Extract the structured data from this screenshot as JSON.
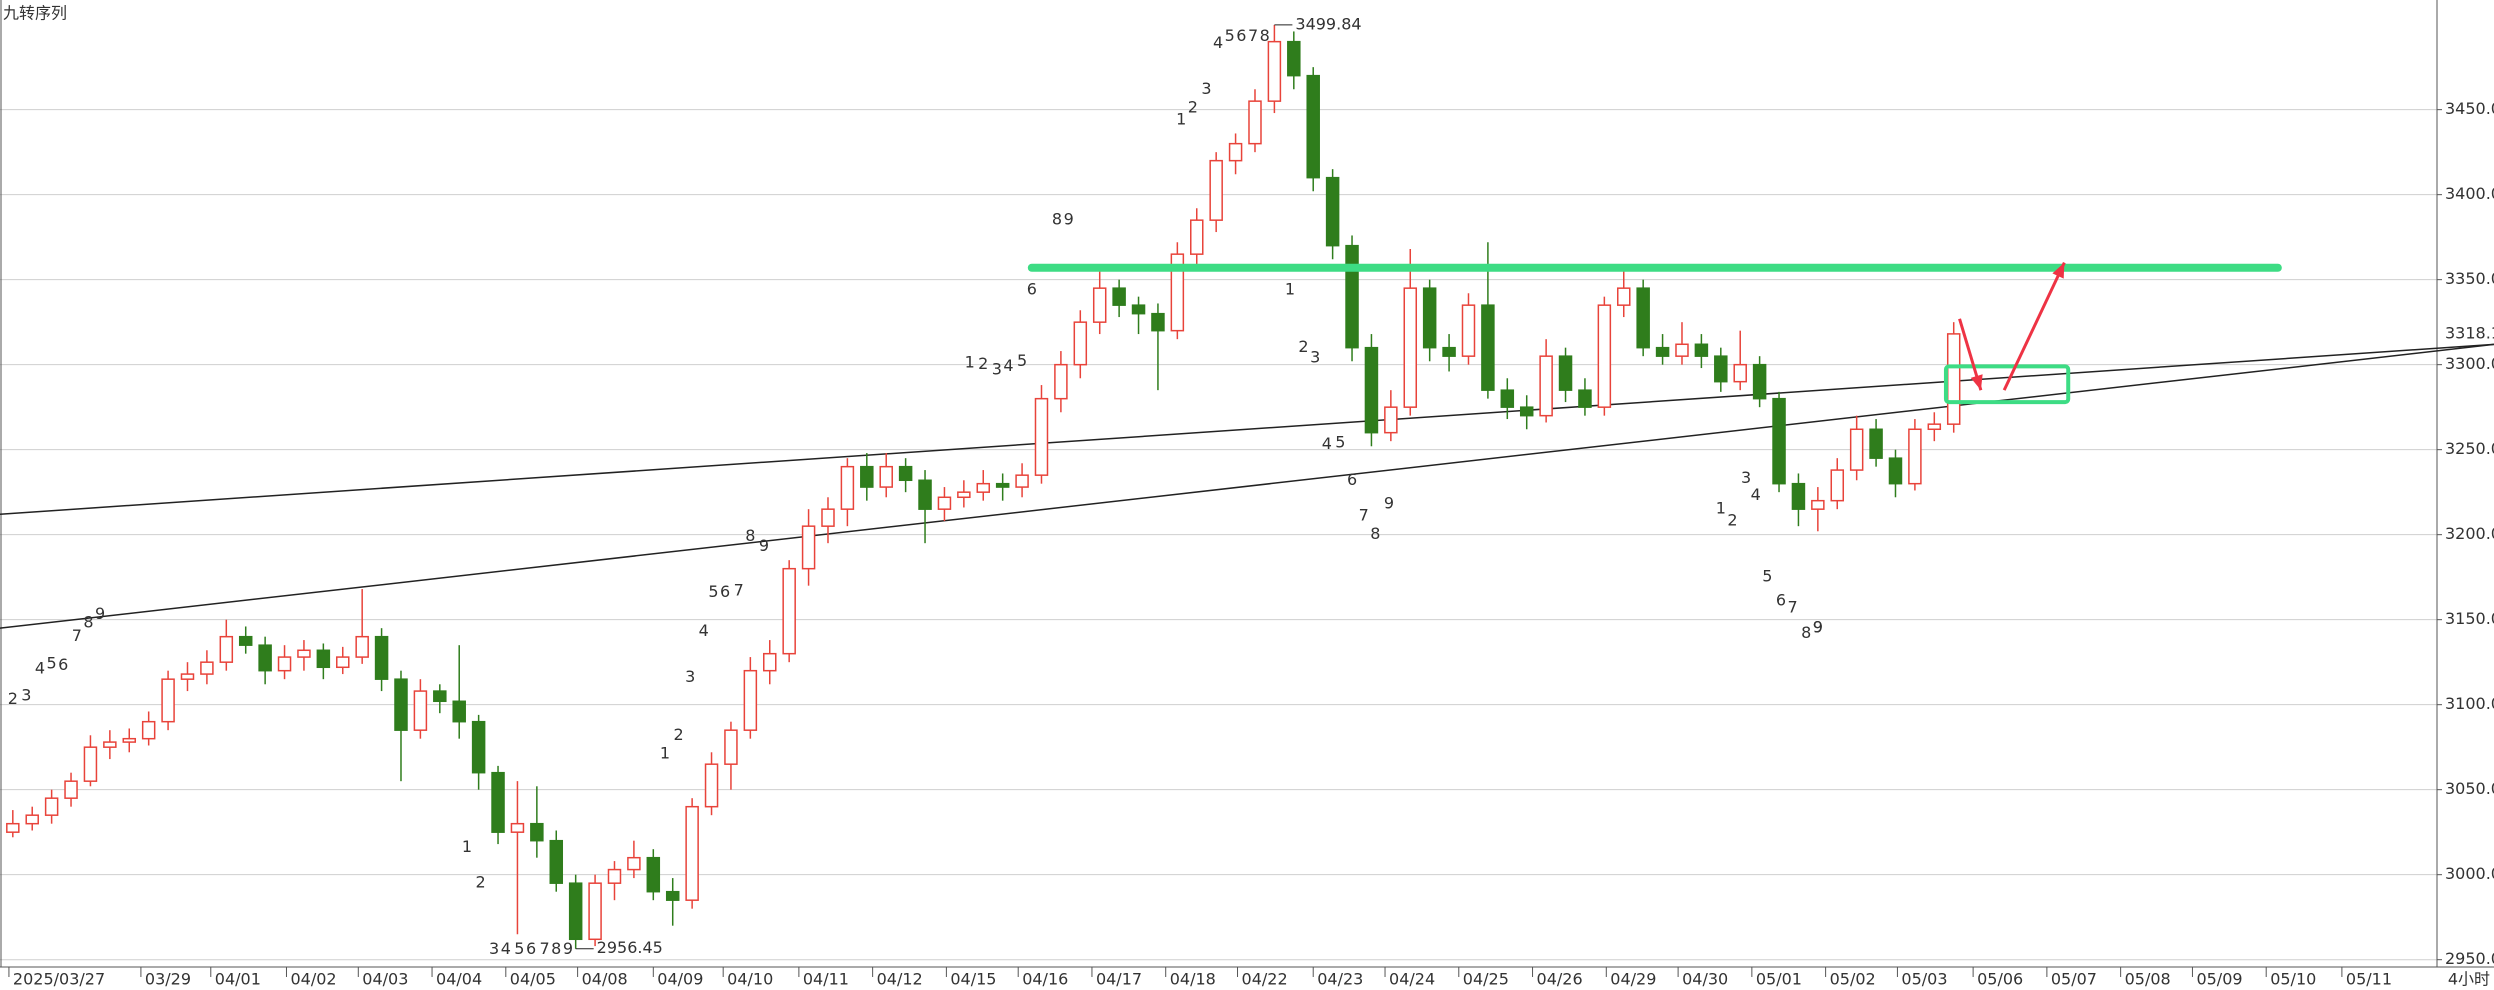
{
  "chart_data": {
    "type": "candlestick",
    "title": "九转序列",
    "timeframe": "4小时",
    "colors": {
      "up": "#e8433a",
      "down": "#2f7d1c"
    },
    "values": [
      [
        3025,
        3038,
        3022,
        3030
      ],
      [
        3030,
        3040,
        3026,
        3035
      ],
      [
        3035,
        3050,
        3030,
        3045
      ],
      [
        3045,
        3060,
        3040,
        3055
      ],
      [
        3055,
        3082,
        3052,
        3075
      ],
      [
        3075,
        3085,
        3068,
        3078
      ],
      [
        3078,
        3086,
        3072,
        3080
      ],
      [
        3080,
        3096,
        3076,
        3090
      ],
      [
        3090,
        3120,
        3085,
        3115
      ],
      [
        3115,
        3125,
        3108,
        3118
      ],
      [
        3118,
        3132,
        3112,
        3125
      ],
      [
        3125,
        3150,
        3120,
        3140
      ],
      [
        3140,
        3146,
        3130,
        3135
      ],
      [
        3135,
        3140,
        3112,
        3120
      ],
      [
        3120,
        3135,
        3115,
        3128
      ],
      [
        3128,
        3138,
        3120,
        3132
      ],
      [
        3132,
        3136,
        3115,
        3122
      ],
      [
        3122,
        3134,
        3118,
        3128
      ],
      [
        3128,
        3168,
        3124,
        3140
      ],
      [
        3140,
        3145,
        3108,
        3115
      ],
      [
        3115,
        3120,
        3055,
        3085
      ],
      [
        3085,
        3115,
        3080,
        3108
      ],
      [
        3108,
        3112,
        3095,
        3102
      ],
      [
        3102,
        3135,
        3080,
        3090
      ],
      [
        3090,
        3094,
        3050,
        3060
      ],
      [
        3060,
        3064,
        3018,
        3025
      ],
      [
        3025,
        3055,
        2965,
        3030
      ],
      [
        3030,
        3052,
        3010,
        3020
      ],
      [
        3020,
        3026,
        2990,
        2995
      ],
      [
        2995,
        3000,
        2956.45,
        2962
      ],
      [
        2962,
        3000,
        2958,
        2995
      ],
      [
        2995,
        3008,
        2985,
        3003
      ],
      [
        3003,
        3020,
        2998,
        3010
      ],
      [
        3010,
        3015,
        2985,
        2990
      ],
      [
        2990,
        2998,
        2970,
        2985
      ],
      [
        2985,
        3045,
        2980,
        3040
      ],
      [
        3040,
        3072,
        3035,
        3065
      ],
      [
        3065,
        3090,
        3050,
        3085
      ],
      [
        3085,
        3128,
        3080,
        3120
      ],
      [
        3120,
        3138,
        3112,
        3130
      ],
      [
        3130,
        3185,
        3125,
        3180
      ],
      [
        3180,
        3215,
        3170,
        3205
      ],
      [
        3205,
        3222,
        3195,
        3215
      ],
      [
        3215,
        3245,
        3205,
        3240
      ],
      [
        3240,
        3248,
        3220,
        3228
      ],
      [
        3228,
        3248,
        3222,
        3240
      ],
      [
        3240,
        3245,
        3225,
        3232
      ],
      [
        3232,
        3238,
        3195,
        3215
      ],
      [
        3215,
        3228,
        3208,
        3222
      ],
      [
        3222,
        3232,
        3216,
        3225
      ],
      [
        3225,
        3238,
        3220,
        3230
      ],
      [
        3230,
        3236,
        3220,
        3228
      ],
      [
        3228,
        3242,
        3222,
        3235
      ],
      [
        3235,
        3288,
        3230,
        3280
      ],
      [
        3280,
        3308,
        3272,
        3300
      ],
      [
        3300,
        3332,
        3292,
        3325
      ],
      [
        3325,
        3355,
        3318,
        3345
      ],
      [
        3345,
        3350,
        3328,
        3335
      ],
      [
        3335,
        3340,
        3318,
        3330
      ],
      [
        3330,
        3336,
        3285,
        3320
      ],
      [
        3320,
        3372,
        3315,
        3365
      ],
      [
        3365,
        3392,
        3358,
        3385
      ],
      [
        3385,
        3425,
        3378,
        3420
      ],
      [
        3420,
        3436,
        3412,
        3430
      ],
      [
        3430,
        3462,
        3425,
        3455
      ],
      [
        3455,
        3499.84,
        3448,
        3490
      ],
      [
        3490,
        3496,
        3462,
        3470
      ],
      [
        3470,
        3475,
        3402,
        3410
      ],
      [
        3410,
        3415,
        3362,
        3370
      ],
      [
        3370,
        3376,
        3302,
        3310
      ],
      [
        3310,
        3318,
        3252,
        3260
      ],
      [
        3260,
        3285,
        3255,
        3275
      ],
      [
        3275,
        3368,
        3270,
        3345
      ],
      [
        3345,
        3350,
        3302,
        3310
      ],
      [
        3310,
        3318,
        3296,
        3305
      ],
      [
        3305,
        3342,
        3300,
        3335
      ],
      [
        3335,
        3372,
        3280,
        3285
      ],
      [
        3285,
        3292,
        3268,
        3275
      ],
      [
        3275,
        3282,
        3262,
        3270
      ],
      [
        3270,
        3315,
        3266,
        3305
      ],
      [
        3305,
        3310,
        3278,
        3285
      ],
      [
        3285,
        3292,
        3270,
        3275
      ],
      [
        3275,
        3340,
        3270,
        3335
      ],
      [
        3335,
        3355,
        3328,
        3345
      ],
      [
        3345,
        3350,
        3305,
        3310
      ],
      [
        3310,
        3318,
        3300,
        3305
      ],
      [
        3305,
        3325,
        3300,
        3312
      ],
      [
        3312,
        3318,
        3298,
        3305
      ],
      [
        3305,
        3310,
        3284,
        3290
      ],
      [
        3290,
        3320,
        3285,
        3300
      ],
      [
        3300,
        3305,
        3275,
        3280
      ],
      [
        3280,
        3284,
        3225,
        3230
      ],
      [
        3230,
        3236,
        3205,
        3215
      ],
      [
        3215,
        3228,
        3202,
        3220
      ],
      [
        3220,
        3245,
        3215,
        3238
      ],
      [
        3238,
        3270,
        3232,
        3262
      ],
      [
        3262,
        3268,
        3240,
        3245
      ],
      [
        3245,
        3250,
        3222,
        3230
      ],
      [
        3230,
        3268,
        3226,
        3262
      ],
      [
        3262,
        3272,
        3255,
        3265
      ],
      [
        3265,
        3325,
        3260,
        3318.1
      ]
    ],
    "xlim": [
      -0.66,
      124.9
    ],
    "ylim": [
      2945.7,
      3514.5
    ],
    "yticks": [
      {
        "value": 2950,
        "label": "2950.00"
      },
      {
        "value": 3000,
        "label": "3000.00"
      },
      {
        "value": 3050,
        "label": "3050.00"
      },
      {
        "value": 3100,
        "label": "3100.00"
      },
      {
        "value": 3150,
        "label": "3150.00"
      },
      {
        "value": 3200,
        "label": "3200.00"
      },
      {
        "value": 3250,
        "label": "3250.00"
      },
      {
        "value": 3300,
        "label": "3300.00"
      },
      {
        "value": 3350,
        "label": "3350.00"
      },
      {
        "value": 3400,
        "label": "3400.00"
      },
      {
        "value": 3450,
        "label": "3450.00"
      }
    ],
    "xticks": [
      {
        "value": -0.2,
        "label": "2025/03/27"
      },
      {
        "value": 6.6,
        "label": "03/29"
      },
      {
        "value": 10.2,
        "label": "04/01"
      },
      {
        "value": 14.1,
        "label": "04/02"
      },
      {
        "value": 17.8,
        "label": "04/03"
      },
      {
        "value": 21.6,
        "label": "04/04"
      },
      {
        "value": 25.4,
        "label": "04/05"
      },
      {
        "value": 29.1,
        "label": "04/08"
      },
      {
        "value": 33.0,
        "label": "04/09"
      },
      {
        "value": 36.6,
        "label": "04/10"
      },
      {
        "value": 40.5,
        "label": "04/11"
      },
      {
        "value": 44.3,
        "label": "04/12"
      },
      {
        "value": 48.1,
        "label": "04/15"
      },
      {
        "value": 51.8,
        "label": "04/16"
      },
      {
        "value": 55.6,
        "label": "04/17"
      },
      {
        "value": 59.4,
        "label": "04/18"
      },
      {
        "value": 63.1,
        "label": "04/22"
      },
      {
        "value": 67.0,
        "label": "04/23"
      },
      {
        "value": 70.7,
        "label": "04/24"
      },
      {
        "value": 74.5,
        "label": "04/25"
      },
      {
        "value": 78.3,
        "label": "04/26"
      },
      {
        "value": 82.1,
        "label": "04/29"
      },
      {
        "value": 85.8,
        "label": "04/30"
      },
      {
        "value": 89.6,
        "label": "05/01"
      },
      {
        "value": 93.4,
        "label": "05/02"
      },
      {
        "value": 97.1,
        "label": "05/03"
      },
      {
        "value": 101.0,
        "label": "05/06"
      },
      {
        "value": 104.8,
        "label": "05/07"
      },
      {
        "value": 108.6,
        "label": "05/08"
      },
      {
        "value": 112.3,
        "label": "05/09"
      },
      {
        "value": 116.1,
        "label": "05/10"
      },
      {
        "value": 120.0,
        "label": "05/11"
      }
    ],
    "grid": true,
    "last_price": 3318.1,
    "last_price_color": "#e8433a",
    "annotations": [
      {
        "index": 65,
        "value": 3499.84
      },
      {
        "index": 29,
        "value": 2956.45
      }
    ],
    "td_sequences": [
      {
        "color": "#cc22cc",
        "labels": [
          "2",
          "3",
          "4",
          "5",
          "6",
          "7",
          "8"
        ],
        "index": [
          0,
          0.7,
          1.4,
          2.0,
          2.6,
          3.3,
          3.9
        ],
        "values": [
          3103,
          3105,
          3121,
          3124,
          3123,
          3140,
          3148
        ]
      },
      {
        "color": "#cc22cc",
        "labels": [
          "1",
          "2",
          "3",
          "4",
          "5",
          "6",
          "7",
          "8"
        ],
        "index": [
          23.4,
          24.1,
          24.8,
          25.4,
          26.1,
          26.7,
          27.4,
          28.0
        ],
        "values": [
          3016,
          2995,
          2956,
          2956,
          2956,
          2956,
          2956,
          2956
        ]
      },
      {
        "color": "#cc22cc",
        "labels": [
          "1",
          "2",
          "3",
          "4",
          "5",
          "6",
          "7",
          "8"
        ],
        "index": [
          33.6,
          34.3,
          34.9,
          35.6,
          36.1,
          36.7,
          37.4,
          38.0
        ],
        "values": [
          3071,
          3082,
          3116,
          3143,
          3166,
          3166,
          3167,
          3199
        ]
      },
      {
        "color": "#cc22cc",
        "labels": [
          "1",
          "2",
          "3",
          "4",
          "5",
          "6",
          "8"
        ],
        "index": [
          49.3,
          50.0,
          50.7,
          51.3,
          52.0,
          52.5,
          53.8
        ],
        "values": [
          3301,
          3300,
          3297,
          3299,
          3302,
          3344,
          3385
        ]
      },
      {
        "color": "#cc22cc",
        "labels": [
          "1",
          "2",
          "3",
          "4",
          "5",
          "6",
          "7",
          "8"
        ],
        "index": [
          60.2,
          60.8,
          61.5,
          62.1,
          62.7,
          63.3,
          63.9,
          64.5
        ],
        "values": [
          3444,
          3451,
          3462,
          3489,
          3493,
          3493,
          3493,
          3493
        ]
      },
      {
        "color": "#cc22cc",
        "labels": [
          "1",
          "2",
          "3",
          "4",
          "5",
          "6",
          "7",
          "8"
        ],
        "index": [
          65.8,
          66.5,
          67.1,
          67.7,
          68.4,
          69.0,
          69.6,
          70.2
        ],
        "values": [
          3344,
          3310,
          3304,
          3253,
          3254,
          3232,
          3211,
          3200
        ]
      },
      {
        "color": "#cc22cc",
        "labels": [
          "1",
          "2",
          "3",
          "4",
          "5",
          "6",
          "7",
          "8"
        ],
        "index": [
          88.0,
          88.6,
          89.3,
          89.8,
          90.4,
          91.1,
          91.7,
          92.4
        ],
        "values": [
          3215,
          3208,
          3233,
          3223,
          3175,
          3161,
          3157,
          3142
        ]
      },
      {
        "color": "#66cc33",
        "labels": [
          "9",
          "9",
          "9",
          "9",
          "9",
          "9",
          "9"
        ],
        "index": [
          4.5,
          28.6,
          38.7,
          54.4,
          70.9,
          93.0,
          93.0
        ],
        "values": [
          3153,
          2956,
          3193,
          3385,
          3218,
          3145,
          3145
        ]
      }
    ],
    "drawings": {
      "hline": {
        "value": 3357,
        "x": [
          52.5,
          116.7
        ],
        "color": "#3ddc84"
      },
      "trendlines": [
        {
          "x": [
            -0.66,
            127.9
          ],
          "values": [
            3212,
            3312
          ]
        },
        {
          "x": [
            -0.66,
            127.9
          ],
          "values": [
            3145,
            3312
          ]
        }
      ],
      "box": {
        "x": [
          99.6,
          105.9
        ],
        "values": [
          3299,
          3278
        ],
        "color": "#3ddc84"
      },
      "arrows": [
        {
          "x": [
            100.3,
            101.4
          ],
          "values": [
            3327,
            3285
          ]
        },
        {
          "x": [
            102.6,
            105.7
          ],
          "values": [
            3285,
            3360
          ]
        }
      ],
      "arrow_color": "#ee3344"
    }
  }
}
